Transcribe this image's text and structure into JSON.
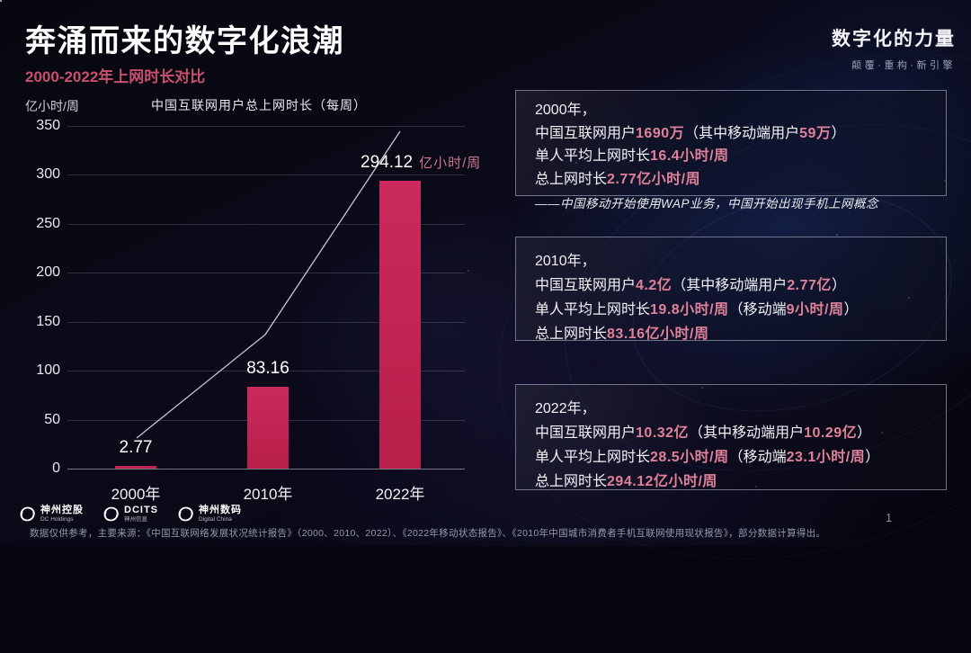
{
  "header": {
    "title": "奔涌而来的数字化浪潮",
    "subtitle": "2000-2022年上网时长对比",
    "brand_title": "数字化的力量",
    "brand_tagline": "颠覆·重构·新引擎"
  },
  "chart_data": {
    "type": "bar",
    "title": "中国互联网用户总上网时长（每周）",
    "ylabel_unit": "亿小时/周",
    "categories": [
      "2000年",
      "2010年",
      "2022年"
    ],
    "values": [
      2.77,
      83.16,
      294.12
    ],
    "bar_value_labels": [
      "2.77",
      "83.16",
      "294.12"
    ],
    "last_value_suffix": "亿小时/周",
    "yticks": [
      0,
      50,
      100,
      150,
      200,
      250,
      300,
      350
    ],
    "ylim": [
      0,
      350
    ],
    "grid": true,
    "legend": false,
    "trend_line": true,
    "bar_color_top": "#cb2a5c",
    "bar_color_bottom": "#b81f4a"
  },
  "info_boxes": [
    {
      "id": "2000",
      "lines": [
        [
          {
            "t": "2000年，"
          }
        ],
        [
          {
            "t": "中国互联网用户"
          },
          {
            "t": "1690万",
            "h": true
          },
          {
            "t": "（其中移动端用户"
          },
          {
            "t": "59万",
            "h": true
          },
          {
            "t": "）"
          }
        ],
        [
          {
            "t": "单人平均上网时长"
          },
          {
            "t": "16.4小时/周",
            "h": true
          }
        ],
        [
          {
            "t": "总上网时长"
          },
          {
            "t": "2.77亿小时/周",
            "h": true
          }
        ]
      ],
      "note": "——中国移动开始使用WAP业务，中国开始出现手机上网概念"
    },
    {
      "id": "2010",
      "lines": [
        [
          {
            "t": "2010年，"
          }
        ],
        [
          {
            "t": "中国互联网用户"
          },
          {
            "t": "4.2亿",
            "h": true
          },
          {
            "t": "（其中移动端用户"
          },
          {
            "t": "2.77亿",
            "h": true
          },
          {
            "t": "）"
          }
        ],
        [
          {
            "t": "单人平均上网时长"
          },
          {
            "t": "19.8小时/周",
            "h": true
          },
          {
            "t": "（移动端"
          },
          {
            "t": "9小时/周",
            "h": true
          },
          {
            "t": "）"
          }
        ],
        [
          {
            "t": "总上网时长"
          },
          {
            "t": "83.16亿小时/周",
            "h": true
          }
        ]
      ]
    },
    {
      "id": "2022",
      "lines": [
        [
          {
            "t": "2022年，"
          }
        ],
        [
          {
            "t": "中国互联网用户"
          },
          {
            "t": "10.32亿",
            "h": true
          },
          {
            "t": "（其中移动端用户"
          },
          {
            "t": "10.29亿",
            "h": true
          },
          {
            "t": "）"
          }
        ],
        [
          {
            "t": "单人平均上网时长"
          },
          {
            "t": "28.5小时/周",
            "h": true
          },
          {
            "t": "（移动端"
          },
          {
            "t": "23.1小时/周",
            "h": true
          },
          {
            "t": "）"
          }
        ],
        [
          {
            "t": "总上网时长"
          },
          {
            "t": "294.12亿小时/周",
            "h": true
          }
        ]
      ]
    }
  ],
  "footer": {
    "logos": [
      {
        "name": "神州控股",
        "sub": "DC Holdings"
      },
      {
        "name": "DCITS",
        "sub": "神州信息"
      },
      {
        "name": "神州数码",
        "sub": "Digital China"
      }
    ],
    "footnote": "数据仅供参考，主要来源：《中国互联网络发展状况统计报告》（2000、2010、2022）、《2022年移动状态报告》、《2010年中国城市消费者手机互联网使用现状报告》，部分数据计算得出。",
    "page_number": "1"
  },
  "colors": {
    "highlight_pink": "#e0819a",
    "value_suffix_pink": "#cf7790",
    "subtitle_rose": "#c8506e",
    "bar_crimson": "#c22453",
    "background": "#06060f"
  }
}
